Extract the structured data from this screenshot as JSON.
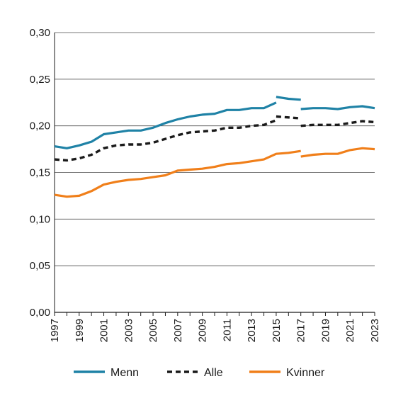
{
  "chart_data": {
    "type": "line",
    "title": "",
    "xlabel": "",
    "ylabel": "",
    "x": [
      1997,
      1998,
      1999,
      2000,
      2001,
      2002,
      2003,
      2004,
      2005,
      2006,
      2007,
      2008,
      2009,
      2010,
      2011,
      2012,
      2013,
      2014,
      2015,
      2016,
      2017,
      2018,
      2019,
      2020,
      2021,
      2022,
      2023
    ],
    "xticks": [
      "1997",
      "1999",
      "2001",
      "2003",
      "2005",
      "2007",
      "2009",
      "2011",
      "2013",
      "2015",
      "2017",
      "2019",
      "2021",
      "2023"
    ],
    "yticks": [
      "0,00",
      "0,05",
      "0,10",
      "0,15",
      "0,20",
      "0,25",
      "0,30"
    ],
    "ylim": [
      0,
      0.3
    ],
    "grid": "horizontal",
    "legend_position": "bottom",
    "series": [
      {
        "name": "Menn",
        "color": "#1f82a6",
        "style": "solid",
        "segments": [
          [
            [
              1997,
              0.178
            ],
            [
              1998,
              0.176
            ],
            [
              1999,
              0.179
            ],
            [
              2000,
              0.183
            ],
            [
              2001,
              0.191
            ],
            [
              2002,
              0.193
            ],
            [
              2003,
              0.195
            ],
            [
              2004,
              0.195
            ],
            [
              2005,
              0.198
            ],
            [
              2006,
              0.203
            ],
            [
              2007,
              0.207
            ],
            [
              2008,
              0.21
            ],
            [
              2009,
              0.212
            ],
            [
              2010,
              0.213
            ],
            [
              2011,
              0.217
            ],
            [
              2012,
              0.217
            ],
            [
              2013,
              0.219
            ],
            [
              2014,
              0.219
            ],
            [
              2015,
              0.225
            ]
          ],
          [
            [
              2015,
              0.231
            ],
            [
              2016,
              0.229
            ],
            [
              2017,
              0.228
            ]
          ],
          [
            [
              2017,
              0.218
            ],
            [
              2018,
              0.219
            ],
            [
              2019,
              0.219
            ],
            [
              2020,
              0.218
            ],
            [
              2021,
              0.22
            ],
            [
              2022,
              0.221
            ],
            [
              2023,
              0.219
            ]
          ]
        ]
      },
      {
        "name": "Alle",
        "color": "#1a1a1a",
        "style": "dashed",
        "segments": [
          [
            [
              1997,
              0.164
            ],
            [
              1998,
              0.163
            ],
            [
              1999,
              0.165
            ],
            [
              2000,
              0.169
            ],
            [
              2001,
              0.176
            ],
            [
              2002,
              0.179
            ],
            [
              2003,
              0.18
            ],
            [
              2004,
              0.18
            ],
            [
              2005,
              0.182
            ],
            [
              2006,
              0.186
            ],
            [
              2007,
              0.19
            ],
            [
              2008,
              0.193
            ],
            [
              2009,
              0.194
            ],
            [
              2010,
              0.195
            ],
            [
              2011,
              0.198
            ],
            [
              2012,
              0.198
            ],
            [
              2013,
              0.2
            ],
            [
              2014,
              0.201
            ],
            [
              2015,
              0.206
            ]
          ],
          [
            [
              2015,
              0.21
            ],
            [
              2016,
              0.209
            ],
            [
              2017,
              0.208
            ]
          ],
          [
            [
              2017,
              0.2
            ],
            [
              2018,
              0.201
            ],
            [
              2019,
              0.201
            ],
            [
              2020,
              0.201
            ],
            [
              2021,
              0.203
            ],
            [
              2022,
              0.205
            ],
            [
              2023,
              0.204
            ]
          ]
        ]
      },
      {
        "name": "Kvinner",
        "color": "#f07f1a",
        "style": "solid",
        "segments": [
          [
            [
              1997,
              0.126
            ],
            [
              1998,
              0.124
            ],
            [
              1999,
              0.125
            ],
            [
              2000,
              0.13
            ],
            [
              2001,
              0.137
            ],
            [
              2002,
              0.14
            ],
            [
              2003,
              0.142
            ],
            [
              2004,
              0.143
            ],
            [
              2005,
              0.145
            ],
            [
              2006,
              0.147
            ],
            [
              2007,
              0.152
            ],
            [
              2008,
              0.153
            ],
            [
              2009,
              0.154
            ],
            [
              2010,
              0.156
            ],
            [
              2011,
              0.159
            ],
            [
              2012,
              0.16
            ],
            [
              2013,
              0.162
            ],
            [
              2014,
              0.164
            ],
            [
              2015,
              0.17
            ],
            [
              2016,
              0.171
            ],
            [
              2017,
              0.173
            ]
          ],
          [
            [
              2017,
              0.167
            ],
            [
              2018,
              0.169
            ],
            [
              2019,
              0.17
            ],
            [
              2020,
              0.17
            ],
            [
              2021,
              0.174
            ],
            [
              2022,
              0.176
            ],
            [
              2023,
              0.175
            ]
          ]
        ]
      }
    ]
  }
}
